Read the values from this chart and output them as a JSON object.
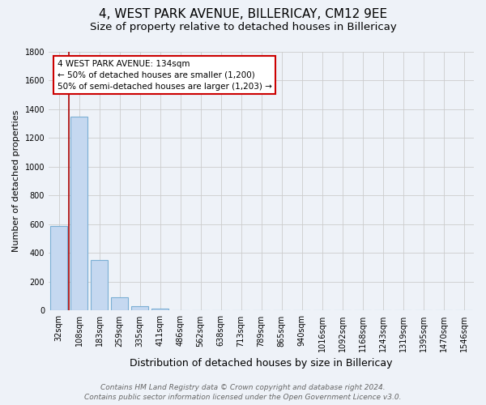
{
  "title": "4, WEST PARK AVENUE, BILLERICAY, CM12 9EE",
  "subtitle": "Size of property relative to detached houses in Billericay",
  "xlabel": "Distribution of detached houses by size in Billericay",
  "ylabel": "Number of detached properties",
  "bar_labels": [
    "32sqm",
    "108sqm",
    "183sqm",
    "259sqm",
    "335sqm",
    "411sqm",
    "486sqm",
    "562sqm",
    "638sqm",
    "713sqm",
    "789sqm",
    "865sqm",
    "940sqm",
    "1016sqm",
    "1092sqm",
    "1168sqm",
    "1243sqm",
    "1319sqm",
    "1395sqm",
    "1470sqm",
    "1546sqm"
  ],
  "bar_values": [
    590,
    1350,
    350,
    90,
    30,
    15,
    0,
    0,
    0,
    0,
    0,
    0,
    0,
    0,
    0,
    0,
    0,
    0,
    0,
    0,
    0
  ],
  "bar_color": "#c5d8f0",
  "bar_edge_color": "#7bafd4",
  "ylim": [
    0,
    1800
  ],
  "yticks": [
    0,
    200,
    400,
    600,
    800,
    1000,
    1200,
    1400,
    1600,
    1800
  ],
  "grid_color": "#cccccc",
  "bg_color": "#eef2f8",
  "red_line_x": 0.5,
  "annotation_box_title": "4 WEST PARK AVENUE: 134sqm",
  "annotation_line1": "← 50% of detached houses are smaller (1,200)",
  "annotation_line2": "50% of semi-detached houses are larger (1,203) →",
  "annotation_box_color": "#ffffff",
  "annotation_box_edge": "#cc0000",
  "footer_line1": "Contains HM Land Registry data © Crown copyright and database right 2024.",
  "footer_line2": "Contains public sector information licensed under the Open Government Licence v3.0.",
  "title_fontsize": 11,
  "subtitle_fontsize": 9.5,
  "xlabel_fontsize": 9,
  "ylabel_fontsize": 8,
  "tick_fontsize": 7,
  "footer_fontsize": 6.5,
  "annot_fontsize": 7.5
}
